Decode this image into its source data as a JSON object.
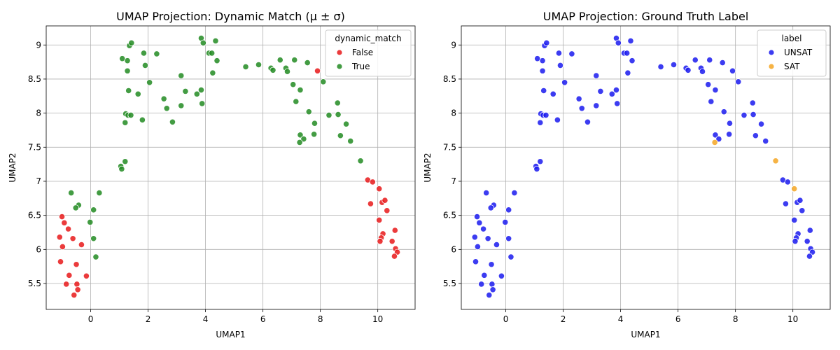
{
  "chart_data": [
    {
      "type": "scatter",
      "title": "UMAP Projection: Dynamic Match (μ ± σ)",
      "xlabel": "UMAP1",
      "ylabel": "UMAP2",
      "xlim": [
        -1.55,
        11.3
      ],
      "ylim": [
        5.12,
        9.28
      ],
      "xticks": [
        0,
        2,
        4,
        6,
        8,
        10
      ],
      "yticks": [
        5.5,
        6.0,
        6.5,
        7.0,
        7.5,
        8.0,
        8.5,
        9.0
      ],
      "grid": true,
      "legend": {
        "title": "dynamic_match",
        "placement": "top-right"
      },
      "series": [
        {
          "name": "False",
          "color": "#e8191a",
          "points": [
            [
              -1.0,
              6.48
            ],
            [
              -0.92,
              6.39
            ],
            [
              -0.78,
              6.3
            ],
            [
              -1.08,
              6.18
            ],
            [
              -0.98,
              6.04
            ],
            [
              -0.62,
              6.16
            ],
            [
              -0.32,
              6.07
            ],
            [
              -1.05,
              5.82
            ],
            [
              -0.5,
              5.78
            ],
            [
              -0.75,
              5.62
            ],
            [
              -0.15,
              5.61
            ],
            [
              -0.85,
              5.49
            ],
            [
              -0.48,
              5.49
            ],
            [
              -0.45,
              5.41
            ],
            [
              -0.58,
              5.33
            ],
            [
              9.65,
              7.02
            ],
            [
              9.82,
              6.99
            ],
            [
              10.05,
              6.89
            ],
            [
              9.75,
              6.67
            ],
            [
              10.15,
              6.69
            ],
            [
              10.25,
              6.72
            ],
            [
              10.32,
              6.57
            ],
            [
              10.05,
              6.43
            ],
            [
              10.18,
              6.23
            ],
            [
              10.12,
              6.17
            ],
            [
              10.08,
              6.12
            ],
            [
              10.6,
              6.28
            ],
            [
              10.5,
              6.12
            ],
            [
              10.62,
              6.01
            ],
            [
              10.68,
              5.96
            ],
            [
              10.58,
              5.9
            ],
            [
              7.9,
              8.62
            ]
          ]
        },
        {
          "name": "True",
          "color": "#228b22",
          "points": [
            [
              -0.68,
              6.83
            ],
            [
              -0.42,
              6.65
            ],
            [
              -0.52,
              6.61
            ],
            [
              0.1,
              6.58
            ],
            [
              -0.02,
              6.4
            ],
            [
              0.1,
              6.16
            ],
            [
              0.18,
              5.89
            ],
            [
              0.3,
              6.83
            ],
            [
              1.05,
              7.22
            ],
            [
              1.08,
              7.18
            ],
            [
              1.2,
              7.29
            ],
            [
              1.2,
              7.86
            ],
            [
              1.22,
              7.99
            ],
            [
              1.3,
              7.97
            ],
            [
              1.4,
              7.97
            ],
            [
              1.32,
              8.33
            ],
            [
              1.28,
              8.62
            ],
            [
              1.28,
              8.77
            ],
            [
              1.1,
              8.8
            ],
            [
              1.35,
              8.99
            ],
            [
              1.42,
              9.03
            ],
            [
              1.65,
              8.28
            ],
            [
              1.8,
              7.9
            ],
            [
              1.85,
              8.88
            ],
            [
              1.9,
              8.7
            ],
            [
              2.05,
              8.45
            ],
            [
              2.3,
              8.87
            ],
            [
              2.55,
              8.21
            ],
            [
              2.65,
              8.07
            ],
            [
              2.85,
              7.87
            ],
            [
              3.15,
              8.55
            ],
            [
              3.15,
              8.11
            ],
            [
              3.3,
              8.32
            ],
            [
              3.7,
              8.28
            ],
            [
              3.85,
              8.34
            ],
            [
              3.88,
              8.14
            ],
            [
              3.85,
              9.1
            ],
            [
              3.92,
              9.03
            ],
            [
              4.12,
              8.88
            ],
            [
              4.22,
              8.88
            ],
            [
              4.25,
              8.59
            ],
            [
              4.35,
              9.06
            ],
            [
              4.4,
              8.77
            ],
            [
              5.4,
              8.68
            ],
            [
              5.85,
              8.71
            ],
            [
              6.28,
              8.66
            ],
            [
              6.35,
              8.63
            ],
            [
              6.6,
              8.78
            ],
            [
              6.8,
              8.66
            ],
            [
              6.85,
              8.61
            ],
            [
              7.05,
              8.42
            ],
            [
              7.1,
              8.78
            ],
            [
              7.15,
              8.17
            ],
            [
              7.3,
              8.34
            ],
            [
              7.55,
              8.74
            ],
            [
              7.6,
              8.02
            ],
            [
              7.8,
              7.85
            ],
            [
              7.78,
              7.69
            ],
            [
              7.3,
              7.68
            ],
            [
              7.42,
              7.62
            ],
            [
              7.28,
              7.57
            ],
            [
              8.1,
              8.46
            ],
            [
              8.3,
              7.97
            ],
            [
              8.6,
              8.15
            ],
            [
              8.62,
              7.98
            ],
            [
              8.7,
              7.67
            ],
            [
              8.9,
              7.84
            ],
            [
              9.05,
              7.59
            ],
            [
              9.4,
              7.3
            ]
          ]
        }
      ]
    },
    {
      "type": "scatter",
      "title": "UMAP Projection: Ground Truth Label",
      "xlabel": "UMAP1",
      "ylabel": "UMAP2",
      "xlim": [
        -1.55,
        11.3
      ],
      "ylim": [
        5.12,
        9.28
      ],
      "xticks": [
        0,
        2,
        4,
        6,
        8,
        10
      ],
      "yticks": [
        5.5,
        6.0,
        6.5,
        7.0,
        7.5,
        8.0,
        8.5,
        9.0
      ],
      "grid": true,
      "legend": {
        "title": "label",
        "placement": "top-right"
      },
      "series": [
        {
          "name": "UNSAT",
          "color": "#1a1aee",
          "points": [
            [
              -1.0,
              6.48
            ],
            [
              -0.92,
              6.39
            ],
            [
              -0.78,
              6.3
            ],
            [
              -1.08,
              6.18
            ],
            [
              -0.98,
              6.04
            ],
            [
              -0.62,
              6.16
            ],
            [
              -0.32,
              6.07
            ],
            [
              -1.05,
              5.82
            ],
            [
              -0.5,
              5.78
            ],
            [
              -0.75,
              5.62
            ],
            [
              -0.15,
              5.61
            ],
            [
              -0.85,
              5.49
            ],
            [
              -0.48,
              5.49
            ],
            [
              -0.45,
              5.41
            ],
            [
              -0.58,
              5.33
            ],
            [
              9.65,
              7.02
            ],
            [
              9.82,
              6.99
            ],
            [
              9.75,
              6.67
            ],
            [
              10.15,
              6.69
            ],
            [
              10.25,
              6.72
            ],
            [
              10.32,
              6.57
            ],
            [
              10.05,
              6.43
            ],
            [
              10.18,
              6.23
            ],
            [
              10.12,
              6.17
            ],
            [
              10.08,
              6.12
            ],
            [
              10.6,
              6.28
            ],
            [
              10.5,
              6.12
            ],
            [
              10.62,
              6.01
            ],
            [
              10.68,
              5.96
            ],
            [
              10.58,
              5.9
            ],
            [
              7.9,
              8.62
            ],
            [
              -0.68,
              6.83
            ],
            [
              -0.42,
              6.65
            ],
            [
              -0.52,
              6.61
            ],
            [
              0.1,
              6.58
            ],
            [
              -0.02,
              6.4
            ],
            [
              0.1,
              6.16
            ],
            [
              0.18,
              5.89
            ],
            [
              0.3,
              6.83
            ],
            [
              1.05,
              7.22
            ],
            [
              1.08,
              7.18
            ],
            [
              1.2,
              7.29
            ],
            [
              1.2,
              7.86
            ],
            [
              1.22,
              7.99
            ],
            [
              1.3,
              7.97
            ],
            [
              1.4,
              7.97
            ],
            [
              1.32,
              8.33
            ],
            [
              1.28,
              8.62
            ],
            [
              1.28,
              8.77
            ],
            [
              1.1,
              8.8
            ],
            [
              1.35,
              8.99
            ],
            [
              1.42,
              9.03
            ],
            [
              1.65,
              8.28
            ],
            [
              1.8,
              7.9
            ],
            [
              1.85,
              8.88
            ],
            [
              1.9,
              8.7
            ],
            [
              2.05,
              8.45
            ],
            [
              2.3,
              8.87
            ],
            [
              2.55,
              8.21
            ],
            [
              2.65,
              8.07
            ],
            [
              2.85,
              7.87
            ],
            [
              3.15,
              8.55
            ],
            [
              3.15,
              8.11
            ],
            [
              3.3,
              8.32
            ],
            [
              3.7,
              8.28
            ],
            [
              3.85,
              8.34
            ],
            [
              3.88,
              8.14
            ],
            [
              3.85,
              9.1
            ],
            [
              3.92,
              9.03
            ],
            [
              4.12,
              8.88
            ],
            [
              4.22,
              8.88
            ],
            [
              4.25,
              8.59
            ],
            [
              4.35,
              9.06
            ],
            [
              4.4,
              8.77
            ],
            [
              5.4,
              8.68
            ],
            [
              5.85,
              8.71
            ],
            [
              6.28,
              8.66
            ],
            [
              6.35,
              8.63
            ],
            [
              6.6,
              8.78
            ],
            [
              6.8,
              8.66
            ],
            [
              6.85,
              8.61
            ],
            [
              7.05,
              8.42
            ],
            [
              7.1,
              8.78
            ],
            [
              7.15,
              8.17
            ],
            [
              7.3,
              8.34
            ],
            [
              7.55,
              8.74
            ],
            [
              7.6,
              8.02
            ],
            [
              7.8,
              7.85
            ],
            [
              7.78,
              7.69
            ],
            [
              7.3,
              7.68
            ],
            [
              7.42,
              7.62
            ],
            [
              8.1,
              8.46
            ],
            [
              8.3,
              7.97
            ],
            [
              8.6,
              8.15
            ],
            [
              8.62,
              7.98
            ],
            [
              8.7,
              7.67
            ],
            [
              8.9,
              7.84
            ],
            [
              9.05,
              7.59
            ]
          ]
        },
        {
          "name": "SAT",
          "color": "#f5a623",
          "points": [
            [
              7.28,
              7.57
            ],
            [
              9.4,
              7.3
            ],
            [
              10.05,
              6.89
            ]
          ]
        }
      ]
    }
  ]
}
